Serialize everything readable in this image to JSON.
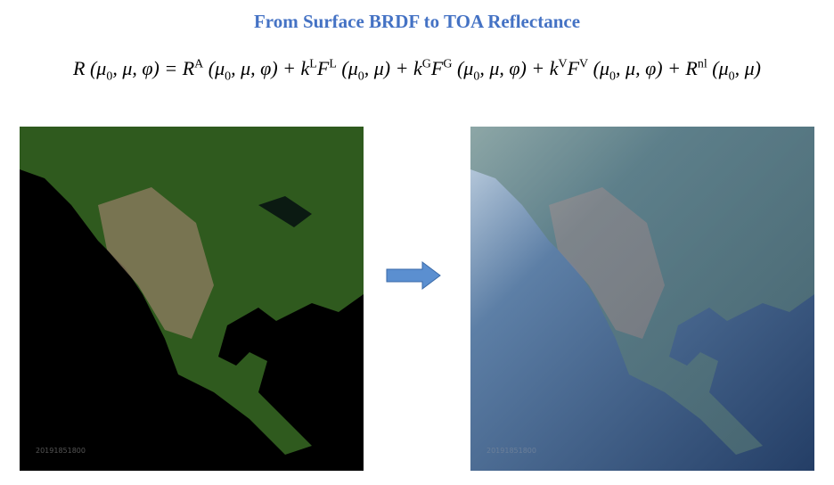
{
  "header": {
    "title": "From Surface BRDF to TOA Reflectance"
  },
  "equation": [
    {
      "t": "R"
    },
    {
      "t": " ("
    },
    {
      "t": "μ"
    },
    {
      "sub": "0"
    },
    {
      "t": ", μ, φ) = R"
    },
    {
      "sup": "A"
    },
    {
      "t": " (μ"
    },
    {
      "sub": "0"
    },
    {
      "t": ", μ, φ) + k"
    },
    {
      "sup": "L"
    },
    {
      "t": "F"
    },
    {
      "sup": "L"
    },
    {
      "t": " (μ"
    },
    {
      "sub": "0"
    },
    {
      "t": ", μ) + k"
    },
    {
      "sup": "G"
    },
    {
      "t": "F"
    },
    {
      "sup": "G"
    },
    {
      "t": " (μ"
    },
    {
      "sub": "0"
    },
    {
      "t": ", μ, φ) + k"
    },
    {
      "sup": "V"
    },
    {
      "t": "F"
    },
    {
      "sup": "V"
    },
    {
      "t": " (μ"
    },
    {
      "sub": "0"
    },
    {
      "t": ", μ, φ) + R"
    },
    {
      "sup": "nl"
    },
    {
      "t": " (μ"
    },
    {
      "sub": "0"
    },
    {
      "t": ", μ)"
    }
  ],
  "images": {
    "surface": {
      "timestamp": "20191851800"
    },
    "toa": {
      "timestamp": "20191851800"
    }
  }
}
